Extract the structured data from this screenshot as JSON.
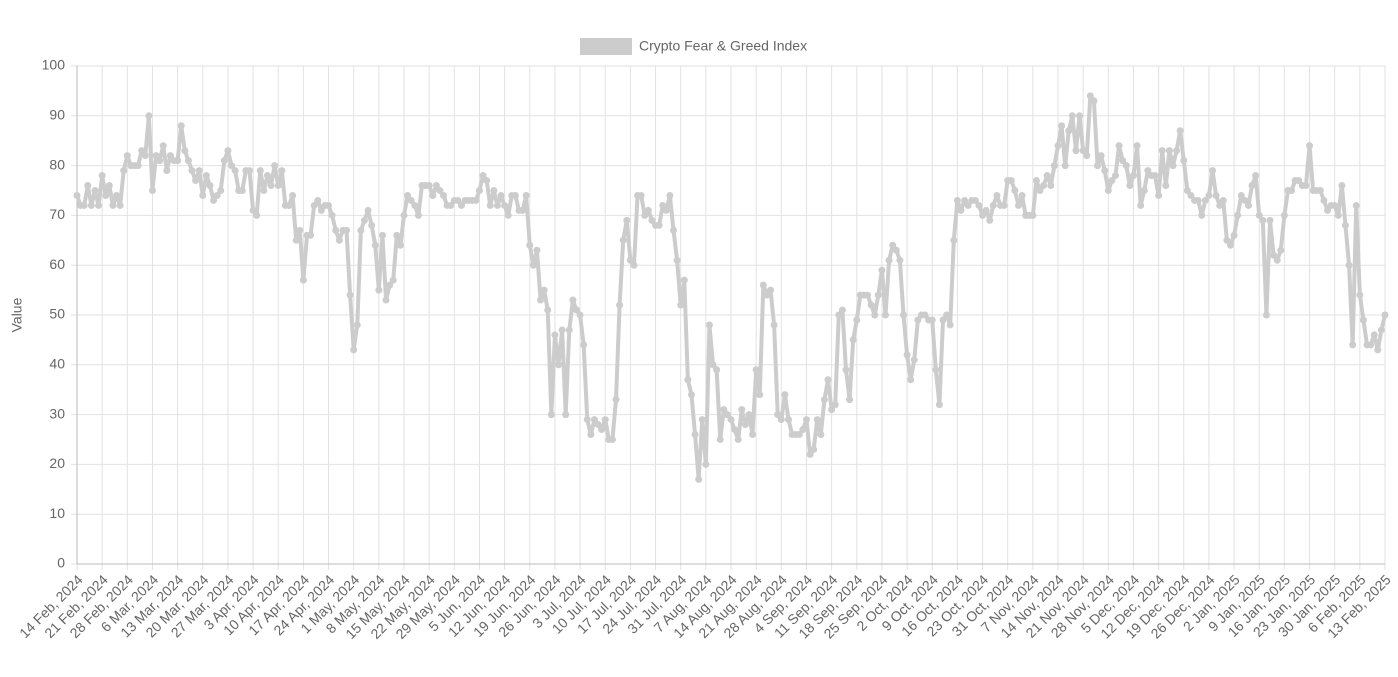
{
  "chart_data": {
    "type": "line",
    "legend": "top",
    "y_label": "Value",
    "grid": true,
    "ylim": [
      0,
      100
    ],
    "yticks": [
      0,
      10,
      20,
      30,
      40,
      50,
      60,
      70,
      80,
      90,
      100
    ],
    "categories": [
      "14 Feb, 2024",
      null,
      null,
      null,
      null,
      null,
      null,
      "21 Feb, 2024",
      null,
      null,
      null,
      null,
      null,
      null,
      "28 Feb, 2024",
      null,
      null,
      null,
      null,
      null,
      null,
      "6 Mar, 2024",
      null,
      null,
      null,
      null,
      null,
      null,
      "13 Mar, 2024",
      null,
      null,
      null,
      null,
      null,
      null,
      "20 Mar, 2024",
      null,
      null,
      null,
      null,
      null,
      null,
      "27 Mar, 2024",
      null,
      null,
      null,
      null,
      null,
      null,
      "3 Apr, 2024",
      null,
      null,
      null,
      null,
      null,
      null,
      "10 Apr, 2024",
      null,
      null,
      null,
      null,
      null,
      null,
      "17 Apr, 2024",
      null,
      null,
      null,
      null,
      null,
      null,
      "24 Apr, 2024",
      null,
      null,
      null,
      null,
      null,
      null,
      "1 May, 2024",
      null,
      null,
      null,
      null,
      null,
      null,
      "8 May, 2024",
      null,
      null,
      null,
      null,
      null,
      null,
      "15 May, 2024",
      null,
      null,
      null,
      null,
      null,
      null,
      "22 May, 2024",
      null,
      null,
      null,
      null,
      null,
      null,
      "29 May, 2024",
      null,
      null,
      null,
      null,
      null,
      null,
      "5 Jun, 2024",
      null,
      null,
      null,
      null,
      null,
      null,
      "12 Jun, 2024",
      null,
      null,
      null,
      null,
      null,
      null,
      "19 Jun, 2024",
      null,
      null,
      null,
      null,
      null,
      null,
      "26 Jun, 2024",
      null,
      null,
      null,
      null,
      null,
      null,
      "3 Jul, 2024",
      null,
      null,
      null,
      null,
      null,
      null,
      "10 Jul, 2024",
      null,
      null,
      null,
      null,
      null,
      null,
      "17 Jul, 2024",
      null,
      null,
      null,
      null,
      null,
      null,
      "24 Jul, 2024",
      null,
      null,
      null,
      null,
      null,
      null,
      "31 Jul, 2024",
      null,
      null,
      null,
      null,
      null,
      null,
      "7 Aug, 2024",
      null,
      null,
      null,
      null,
      null,
      null,
      "14 Aug, 2024",
      null,
      null,
      null,
      null,
      null,
      null,
      "21 Aug, 2024",
      null,
      null,
      null,
      null,
      null,
      null,
      "28 Aug, 2024",
      null,
      null,
      null,
      null,
      null,
      null,
      "4 Sep, 2024",
      null,
      null,
      null,
      null,
      null,
      null,
      "11 Sep, 2024",
      null,
      null,
      null,
      null,
      null,
      null,
      "18 Sep, 2024",
      null,
      null,
      null,
      null,
      null,
      null,
      "25 Sep, 2024",
      null,
      null,
      null,
      null,
      null,
      null,
      "2 Oct, 2024",
      null,
      null,
      null,
      null,
      null,
      null,
      "9 Oct, 2024",
      null,
      null,
      null,
      null,
      null,
      null,
      "16 Oct, 2024",
      null,
      null,
      null,
      null,
      null,
      null,
      "23 Oct, 2024",
      null,
      null,
      null,
      null,
      null,
      null,
      "31 Oct, 2024",
      null,
      null,
      null,
      null,
      null,
      null,
      "7 Nov, 2024",
      null,
      null,
      null,
      null,
      null,
      null,
      "14 Nov, 2024",
      null,
      null,
      null,
      null,
      null,
      null,
      "21 Nov, 2024",
      null,
      null,
      null,
      null,
      null,
      null,
      "28 Nov, 2024",
      null,
      null,
      null,
      null,
      null,
      null,
      "5 Dec, 2024",
      null,
      null,
      null,
      null,
      null,
      null,
      "12 Dec, 2024",
      null,
      null,
      null,
      null,
      null,
      null,
      "19 Dec, 2024",
      null,
      null,
      null,
      null,
      null,
      null,
      "26 Dec, 2024",
      null,
      null,
      null,
      null,
      null,
      null,
      "2 Jan, 2025",
      null,
      null,
      null,
      null,
      null,
      null,
      "9 Jan, 2025",
      null,
      null,
      null,
      null,
      null,
      null,
      "16 Jan, 2025",
      null,
      null,
      null,
      null,
      null,
      null,
      "23 Jan, 2025",
      null,
      null,
      null,
      null,
      null,
      null,
      "30 Jan, 2025",
      null,
      null,
      null,
      null,
      null,
      null,
      "6 Feb, 2025",
      null,
      null,
      null,
      null,
      null,
      null,
      "13 Feb, 2025"
    ],
    "series": [
      {
        "name": "Crypto Fear & Greed Index",
        "color": "#cccccc",
        "values": [
          74,
          72,
          72,
          76,
          72,
          75,
          72,
          78,
          74,
          76,
          72,
          74,
          72,
          79,
          82,
          80,
          80,
          80,
          83,
          82,
          90,
          75,
          82,
          81,
          84,
          79,
          82,
          81,
          81,
          88,
          83,
          81,
          79,
          77,
          79,
          74,
          78,
          76,
          73,
          74,
          75,
          81,
          83,
          80,
          79,
          75,
          75,
          79,
          79,
          71,
          70,
          79,
          75,
          78,
          76,
          80,
          76,
          79,
          72,
          72,
          74,
          65,
          67,
          57,
          66,
          66,
          72,
          73,
          71,
          72,
          72,
          70,
          67,
          65,
          67,
          67,
          54,
          43,
          48,
          67,
          69,
          71,
          68,
          64,
          55,
          66,
          53,
          56,
          57,
          66,
          64,
          70,
          74,
          73,
          72,
          70,
          76,
          76,
          76,
          74,
          76,
          75,
          74,
          72,
          72,
          73,
          73,
          72,
          73,
          73,
          73,
          73,
          75,
          78,
          77,
          72,
          75,
          72,
          74,
          72,
          70,
          74,
          74,
          71,
          71,
          74,
          64,
          60,
          63,
          53,
          55,
          51,
          30,
          46,
          40,
          47,
          30,
          47,
          53,
          51,
          50,
          44,
          29,
          26,
          29,
          28,
          27,
          29,
          25,
          25,
          33,
          52,
          65,
          69,
          61,
          60,
          74,
          74,
          70,
          71,
          69,
          68,
          68,
          72,
          71,
          74,
          67,
          61,
          52,
          57,
          37,
          34,
          26,
          17,
          29,
          20,
          48,
          40,
          39,
          25,
          31,
          30,
          29,
          27,
          25,
          31,
          28,
          30,
          26,
          39,
          34,
          56,
          54,
          55,
          48,
          30,
          29,
          34,
          29,
          26,
          26,
          26,
          27,
          29,
          22,
          23,
          29,
          26,
          33,
          37,
          31,
          32,
          50,
          51,
          39,
          33,
          45,
          49,
          54,
          54,
          54,
          52,
          50,
          54,
          59,
          50,
          61,
          64,
          63,
          61,
          50,
          42,
          37,
          41,
          49,
          50,
          50,
          49,
          49,
          39,
          32,
          49,
          50,
          48,
          65,
          73,
          71,
          73,
          72,
          73,
          73,
          72,
          70,
          71,
          69,
          72,
          74,
          72,
          72,
          77,
          77,
          75,
          72,
          74,
          70,
          70,
          70,
          77,
          75,
          76,
          78,
          76,
          80,
          84,
          88,
          80,
          87,
          90,
          83,
          90,
          83,
          82,
          94,
          93,
          80,
          82,
          79,
          75,
          77,
          78,
          84,
          81,
          80,
          76,
          78,
          84,
          72,
          75,
          79,
          78,
          78,
          74,
          83,
          76,
          83,
          80,
          83,
          87,
          81,
          75,
          74,
          73,
          73,
          70,
          73,
          74,
          79,
          74,
          72,
          73,
          65,
          64,
          66,
          70,
          74,
          73,
          72,
          76,
          78,
          70,
          69,
          50,
          69,
          62,
          61,
          63,
          70,
          75,
          75,
          77,
          77,
          76,
          76,
          84,
          75,
          75,
          75,
          73,
          71,
          72,
          72,
          70,
          76,
          68,
          60,
          44,
          72,
          54,
          49,
          44,
          44,
          46,
          43,
          47,
          50
        ]
      }
    ]
  }
}
